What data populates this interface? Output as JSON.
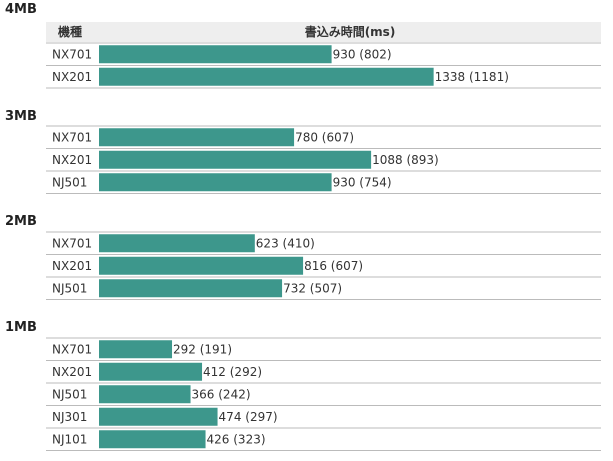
{
  "header": {
    "model_col": "機種",
    "time_col": "書込み時間(ms)"
  },
  "colors": {
    "bar": "#3d978c",
    "grid": "#bbbbbb",
    "header_bg": "#eeeeee"
  },
  "chart_data": {
    "type": "bar",
    "orientation": "horizontal",
    "value_label": "書込み時間(ms)",
    "category_label": "機種",
    "groups": [
      {
        "title": "4MB",
        "rows": [
          {
            "model": "NX701",
            "value": 930,
            "sub": 802,
            "label": "930 (802)"
          },
          {
            "model": "NX201",
            "value": 1338,
            "sub": 1181,
            "label": "1338 (1181)"
          }
        ]
      },
      {
        "title": "3MB",
        "rows": [
          {
            "model": "NX701",
            "value": 780,
            "sub": 607,
            "label": "780 (607)"
          },
          {
            "model": "NX201",
            "value": 1088,
            "sub": 893,
            "label": "1088 (893)"
          },
          {
            "model": "NJ501",
            "value": 930,
            "sub": 754,
            "label": "930 (754)"
          }
        ]
      },
      {
        "title": "2MB",
        "rows": [
          {
            "model": "NX701",
            "value": 623,
            "sub": 410,
            "label": "623 (410)"
          },
          {
            "model": "NX201",
            "value": 816,
            "sub": 607,
            "label": "816 (607)"
          },
          {
            "model": "NJ501",
            "value": 732,
            "sub": 507,
            "label": "732 (507)"
          }
        ]
      },
      {
        "title": "1MB",
        "rows": [
          {
            "model": "NX701",
            "value": 292,
            "sub": 191,
            "label": "292 (191)"
          },
          {
            "model": "NX201",
            "value": 412,
            "sub": 292,
            "label": "412 (292)"
          },
          {
            "model": "NJ501",
            "value": 366,
            "sub": 242,
            "label": "366 (242)"
          },
          {
            "model": "NJ301",
            "value": 474,
            "sub": 297,
            "label": "474 (297)"
          },
          {
            "model": "NJ101",
            "value": 426,
            "sub": 323,
            "label": "426 (323)"
          }
        ]
      }
    ]
  }
}
